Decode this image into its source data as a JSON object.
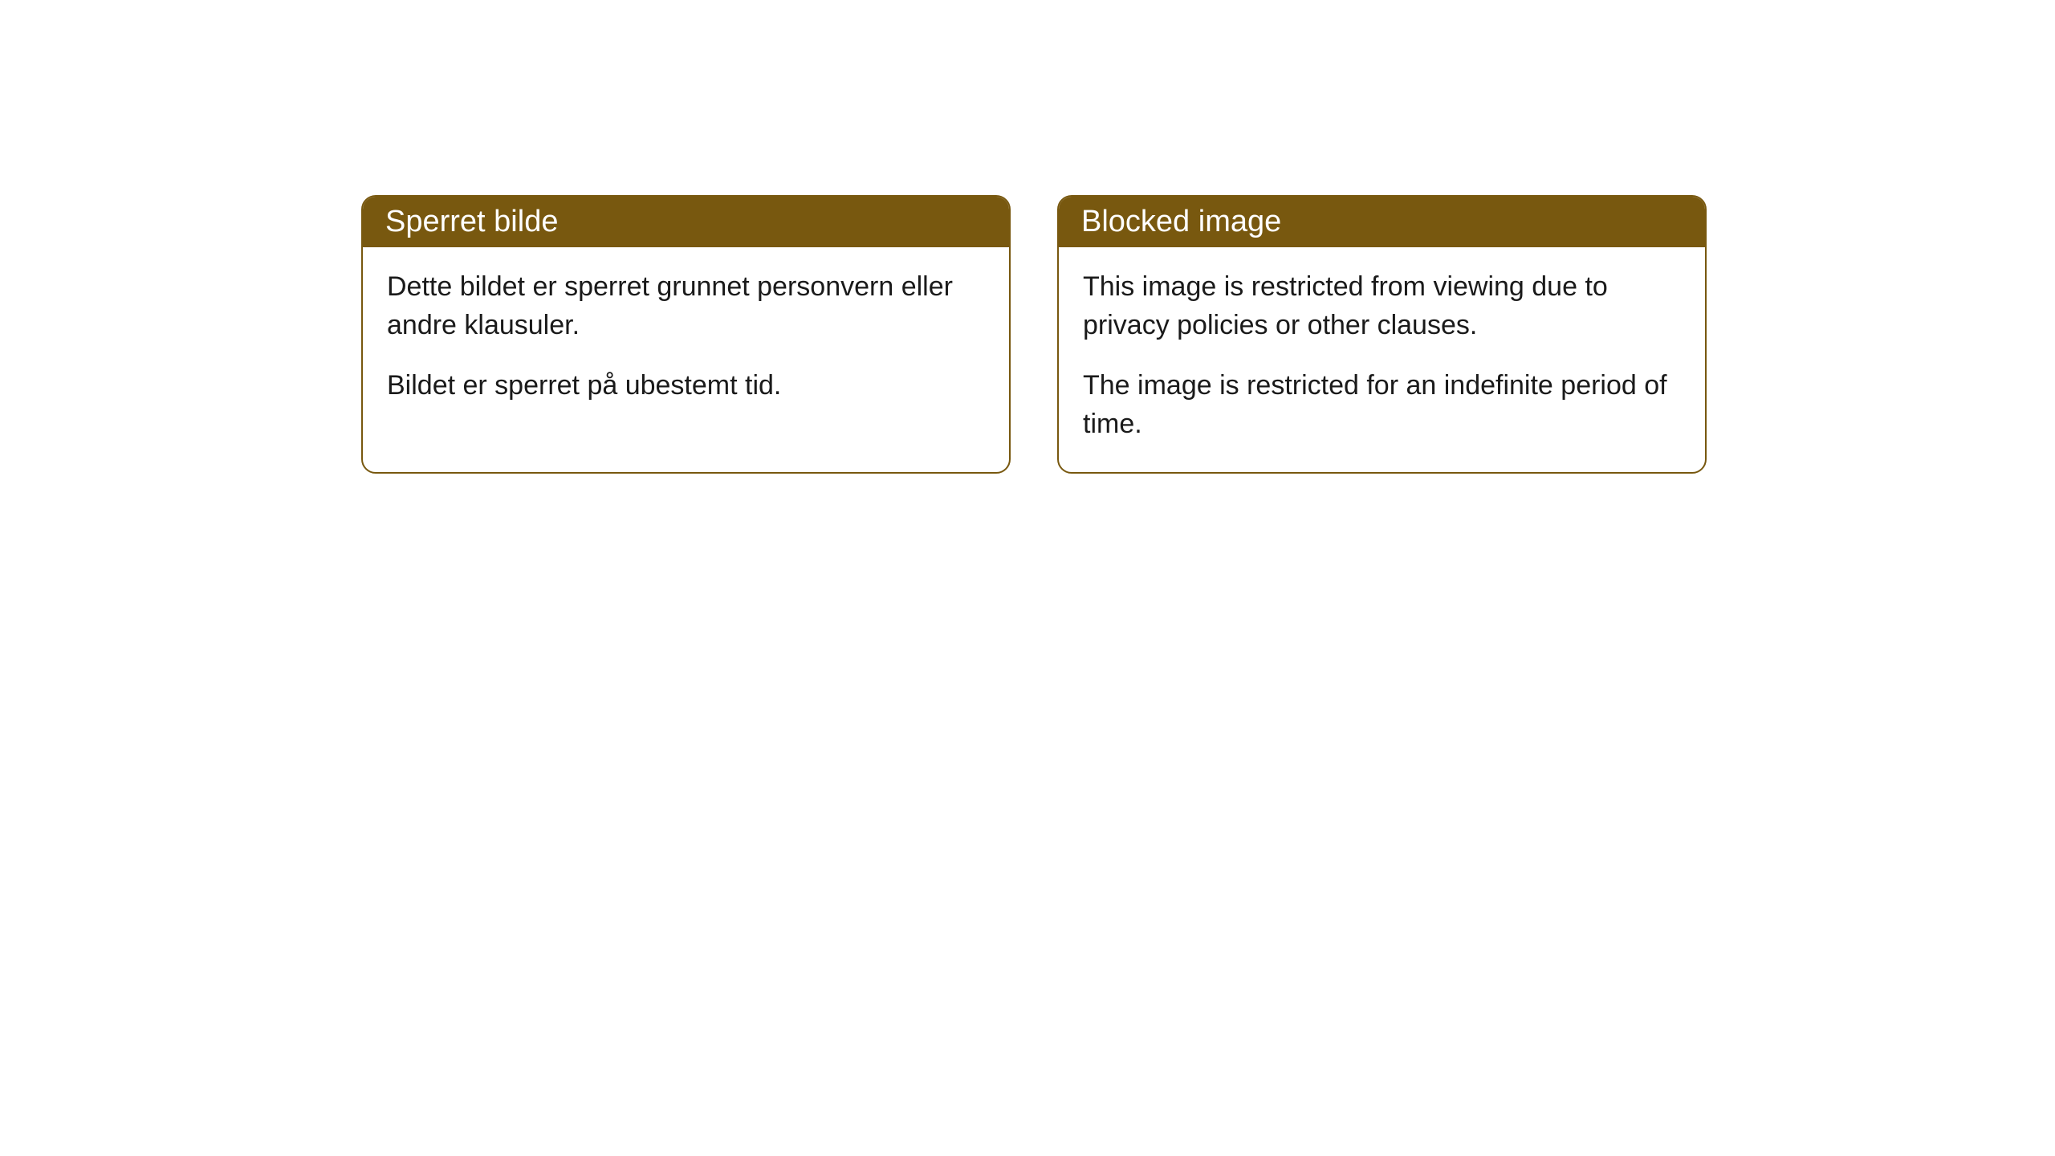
{
  "cards": {
    "left": {
      "title": "Sperret bilde",
      "paragraph1": "Dette bildet er sperret grunnet personvern eller andre klausuler.",
      "paragraph2": "Bildet er sperret på ubestemt tid."
    },
    "right": {
      "title": "Blocked image",
      "paragraph1": "This image is restricted from viewing due to privacy policies or other clauses.",
      "paragraph2": "The image is restricted for an indefinite period of time."
    }
  },
  "style": {
    "header_background": "#78580f",
    "header_text_color": "#ffffff",
    "border_color": "#78580f",
    "body_text_color": "#1a1a1a",
    "card_background": "#ffffff",
    "page_background": "#ffffff",
    "border_radius": 18,
    "header_fontsize": 38,
    "body_fontsize": 34
  }
}
